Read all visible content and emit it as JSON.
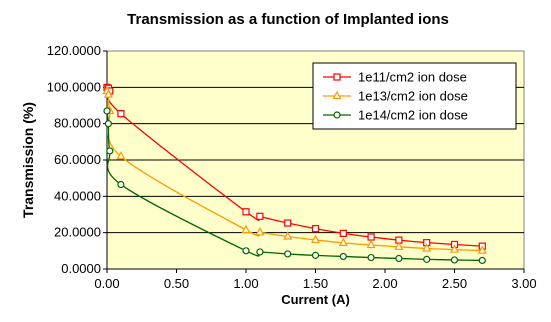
{
  "chart_data": {
    "type": "scatter",
    "title": "Transmission as a function of Implanted ions",
    "xlabel": "Current (A)",
    "ylabel": "Transmission (%)",
    "xlim": [
      0,
      3
    ],
    "ylim": [
      0,
      120
    ],
    "x_ticks": [
      "0.00",
      "0.50",
      "1.00",
      "1.50",
      "2.00",
      "2.50",
      "3.00"
    ],
    "y_ticks": [
      "0.0000",
      "20.0000",
      "40.0000",
      "60.0000",
      "80.0000",
      "100.0000",
      "120.0000"
    ],
    "grid": "horizontal",
    "plot_background": "#FFFFCC",
    "legend_position": "top-right",
    "series": [
      {
        "name": "1e11/cm2 ion dose",
        "color": "#FF0000",
        "marker": "square",
        "x": [
          0,
          0.01,
          0.02,
          0.1,
          1.0,
          1.1,
          1.3,
          1.5,
          1.7,
          1.9,
          2.1,
          2.3,
          2.5,
          2.7
        ],
        "y": [
          100,
          99.5,
          98,
          85.5,
          31.5,
          29,
          25.3,
          22.2,
          19.6,
          17.6,
          15.9,
          14.5,
          13.5,
          12.6
        ]
      },
      {
        "name": "1e13/cm2 ion dose",
        "color": "#FF9900",
        "marker": "triangle",
        "x": [
          0,
          0.01,
          0.02,
          0.1,
          1.0,
          1.1,
          1.3,
          1.5,
          1.7,
          1.9,
          2.1,
          2.3,
          2.5,
          2.7
        ],
        "y": [
          98,
          96,
          87,
          62,
          21.5,
          20.2,
          17.9,
          16,
          14.4,
          13.2,
          12.2,
          11.3,
          10.7,
          10.1
        ]
      },
      {
        "name": "1e14/cm2 ion dose",
        "color": "#006600",
        "marker": "circle",
        "x": [
          0,
          0.01,
          0.02,
          0.1,
          1.0,
          1.1,
          1.3,
          1.5,
          1.7,
          1.9,
          2.1,
          2.3,
          2.5,
          2.7
        ],
        "y": [
          87,
          80,
          65,
          46.5,
          10,
          9.4,
          8.3,
          7.5,
          6.9,
          6.3,
          5.8,
          5.3,
          5.0,
          4.7
        ]
      }
    ]
  }
}
